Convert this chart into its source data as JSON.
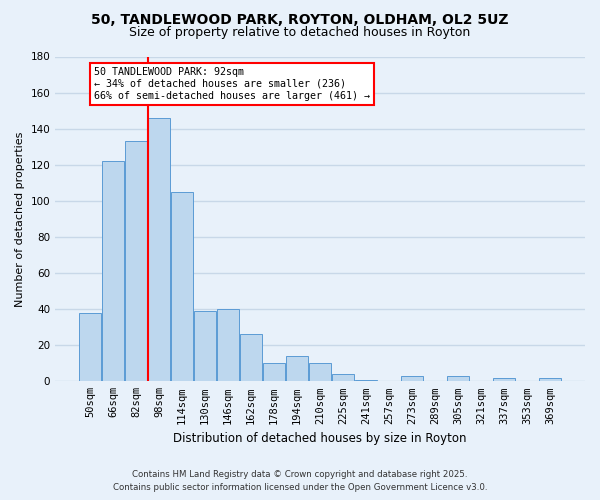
{
  "title_line1": "50, TANDLEWOOD PARK, ROYTON, OLDHAM, OL2 5UZ",
  "title_line2": "Size of property relative to detached houses in Royton",
  "bar_labels": [
    "50sqm",
    "66sqm",
    "82sqm",
    "98sqm",
    "114sqm",
    "130sqm",
    "146sqm",
    "162sqm",
    "178sqm",
    "194sqm",
    "210sqm",
    "225sqm",
    "241sqm",
    "257sqm",
    "273sqm",
    "289sqm",
    "305sqm",
    "321sqm",
    "337sqm",
    "353sqm",
    "369sqm"
  ],
  "bar_values": [
    38,
    122,
    133,
    146,
    105,
    39,
    40,
    26,
    10,
    14,
    10,
    4,
    1,
    0,
    3,
    0,
    3,
    0,
    2,
    0,
    2
  ],
  "bar_color": "#bdd7ee",
  "bar_edge_color": "#5b9bd5",
  "vline_index": 3,
  "vline_color": "red",
  "ylabel": "Number of detached properties",
  "xlabel": "Distribution of detached houses by size in Royton",
  "ylim": [
    0,
    180
  ],
  "yticks": [
    0,
    20,
    40,
    60,
    80,
    100,
    120,
    140,
    160,
    180
  ],
  "annotation_title": "50 TANDLEWOOD PARK: 92sqm",
  "annotation_line2": "← 34% of detached houses are smaller (236)",
  "annotation_line3": "66% of semi-detached houses are larger (461) →",
  "annotation_box_color": "white",
  "annotation_box_edge_color": "red",
  "footer_line1": "Contains HM Land Registry data © Crown copyright and database right 2025.",
  "footer_line2": "Contains public sector information licensed under the Open Government Licence v3.0.",
  "background_color": "#e8f1fa",
  "grid_color": "#c8d8e8",
  "title_fontsize": 10,
  "subtitle_fontsize": 9,
  "tick_fontsize": 7.5,
  "ylabel_fontsize": 8,
  "xlabel_fontsize": 8.5
}
